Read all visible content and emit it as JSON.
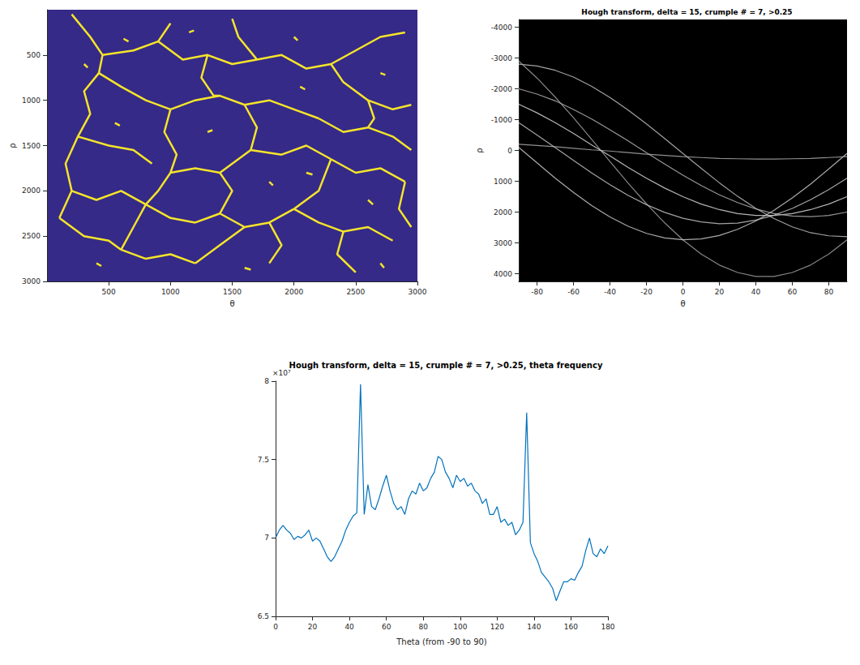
{
  "chart_data": [
    {
      "type": "segments",
      "color": "#f5e42a",
      "x_label": "θ",
      "y_label": "ρ",
      "xlim": [
        0,
        3000
      ],
      "ylim": [
        3000,
        0
      ],
      "xticks": [
        500,
        1000,
        1500,
        2000,
        2500,
        3000
      ],
      "yticks": [
        500,
        1000,
        1500,
        2000,
        2500,
        3000
      ],
      "segments": [
        [
          [
            200,
            50
          ],
          [
            350,
            300
          ],
          [
            450,
            500
          ],
          [
            420,
            700
          ]
        ],
        [
          [
            450,
            500
          ],
          [
            700,
            450
          ],
          [
            900,
            350
          ],
          [
            1000,
            150
          ]
        ],
        [
          [
            900,
            350
          ],
          [
            1100,
            550
          ],
          [
            1300,
            500
          ],
          [
            1500,
            600
          ],
          [
            1700,
            550
          ]
        ],
        [
          [
            1700,
            550
          ],
          [
            1900,
            500
          ],
          [
            2100,
            650
          ],
          [
            2300,
            600
          ]
        ],
        [
          [
            1500,
            100
          ],
          [
            1550,
            300
          ],
          [
            1700,
            550
          ]
        ],
        [
          [
            2300,
            600
          ],
          [
            2500,
            450
          ],
          [
            2700,
            300
          ],
          [
            2900,
            250
          ]
        ],
        [
          [
            2300,
            600
          ],
          [
            2400,
            800
          ],
          [
            2600,
            1000
          ],
          [
            2800,
            1100
          ],
          [
            2950,
            1050
          ]
        ],
        [
          [
            420,
            700
          ],
          [
            300,
            900
          ],
          [
            350,
            1150
          ],
          [
            250,
            1400
          ]
        ],
        [
          [
            420,
            700
          ],
          [
            600,
            850
          ],
          [
            800,
            1000
          ],
          [
            1000,
            1100
          ]
        ],
        [
          [
            1000,
            1100
          ],
          [
            1200,
            1000
          ],
          [
            1400,
            950
          ],
          [
            1600,
            1050
          ]
        ],
        [
          [
            1000,
            1100
          ],
          [
            950,
            1350
          ],
          [
            1050,
            1600
          ],
          [
            1000,
            1800
          ]
        ],
        [
          [
            1600,
            1050
          ],
          [
            1800,
            1000
          ],
          [
            2000,
            1100
          ],
          [
            2200,
            1200
          ]
        ],
        [
          [
            1600,
            1050
          ],
          [
            1700,
            1300
          ],
          [
            1650,
            1550
          ]
        ],
        [
          [
            2200,
            1200
          ],
          [
            2400,
            1350
          ],
          [
            2600,
            1300
          ],
          [
            2800,
            1400
          ],
          [
            2950,
            1550
          ]
        ],
        [
          [
            250,
            1400
          ],
          [
            150,
            1700
          ],
          [
            200,
            2000
          ],
          [
            100,
            2300
          ]
        ],
        [
          [
            250,
            1400
          ],
          [
            500,
            1500
          ],
          [
            700,
            1550
          ],
          [
            850,
            1700
          ]
        ],
        [
          [
            1000,
            1800
          ],
          [
            1200,
            1750
          ],
          [
            1400,
            1800
          ],
          [
            1650,
            1550
          ]
        ],
        [
          [
            1650,
            1550
          ],
          [
            1900,
            1600
          ],
          [
            2100,
            1500
          ],
          [
            2300,
            1650
          ]
        ],
        [
          [
            2300,
            1650
          ],
          [
            2500,
            1800
          ],
          [
            2700,
            1750
          ],
          [
            2900,
            1900
          ]
        ],
        [
          [
            200,
            2000
          ],
          [
            400,
            2100
          ],
          [
            600,
            2000
          ],
          [
            800,
            2150
          ]
        ],
        [
          [
            1000,
            1800
          ],
          [
            900,
            2000
          ],
          [
            800,
            2150
          ],
          [
            700,
            2400
          ],
          [
            600,
            2650
          ]
        ],
        [
          [
            800,
            2150
          ],
          [
            1000,
            2300
          ],
          [
            1200,
            2350
          ],
          [
            1400,
            2250
          ]
        ],
        [
          [
            1400,
            2250
          ],
          [
            1500,
            2000
          ],
          [
            1400,
            1800
          ]
        ],
        [
          [
            1400,
            2250
          ],
          [
            1600,
            2400
          ],
          [
            1800,
            2350
          ],
          [
            2000,
            2200
          ]
        ],
        [
          [
            2000,
            2200
          ],
          [
            2200,
            2000
          ],
          [
            2300,
            1650
          ]
        ],
        [
          [
            2000,
            2200
          ],
          [
            2200,
            2350
          ],
          [
            2400,
            2450
          ],
          [
            2600,
            2400
          ],
          [
            2800,
            2550
          ]
        ],
        [
          [
            600,
            2650
          ],
          [
            800,
            2750
          ],
          [
            1000,
            2700
          ],
          [
            1200,
            2800
          ]
        ],
        [
          [
            1200,
            2800
          ],
          [
            1400,
            2600
          ],
          [
            1600,
            2400
          ]
        ],
        [
          [
            1800,
            2350
          ],
          [
            1900,
            2600
          ],
          [
            1800,
            2800
          ]
        ],
        [
          [
            2400,
            2450
          ],
          [
            2350,
            2700
          ],
          [
            2500,
            2900
          ]
        ],
        [
          [
            100,
            2300
          ],
          [
            300,
            2500
          ],
          [
            500,
            2550
          ],
          [
            600,
            2650
          ]
        ],
        [
          [
            2900,
            1900
          ],
          [
            2850,
            2200
          ],
          [
            2950,
            2400
          ]
        ],
        [
          [
            1300,
            500
          ],
          [
            1250,
            750
          ],
          [
            1350,
            950
          ],
          [
            1400,
            950
          ]
        ],
        [
          [
            2600,
            1000
          ],
          [
            2650,
            1200
          ],
          [
            2600,
            1300
          ]
        ],
        [
          [
            620,
            320
          ],
          [
            660,
            350
          ]
        ],
        [
          [
            1150,
            250
          ],
          [
            1190,
            230
          ]
        ],
        [
          [
            2000,
            300
          ],
          [
            2030,
            340
          ]
        ],
        [
          [
            2700,
            700
          ],
          [
            2740,
            720
          ]
        ],
        [
          [
            550,
            1250
          ],
          [
            590,
            1280
          ]
        ],
        [
          [
            1300,
            1350
          ],
          [
            1340,
            1330
          ]
        ],
        [
          [
            2100,
            1800
          ],
          [
            2150,
            1820
          ]
        ],
        [
          [
            2600,
            2100
          ],
          [
            2640,
            2150
          ]
        ],
        [
          [
            400,
            2800
          ],
          [
            440,
            2830
          ]
        ],
        [
          [
            1600,
            2850
          ],
          [
            1650,
            2870
          ]
        ],
        [
          [
            2700,
            2800
          ],
          [
            2730,
            2850
          ]
        ],
        [
          [
            2050,
            850
          ],
          [
            2090,
            880
          ]
        ],
        [
          [
            1800,
            1900
          ],
          [
            1830,
            1940
          ]
        ],
        [
          [
            300,
            600
          ],
          [
            330,
            640
          ]
        ]
      ]
    },
    {
      "type": "line",
      "title": "Hough transform, delta = 15, crumple # = 7, >0.25",
      "x_label": "θ",
      "y_label": "ρ",
      "xlim": [
        -90,
        90
      ],
      "ylim": [
        4250,
        -4250
      ],
      "xticks": [
        -80,
        -60,
        -40,
        -20,
        0,
        20,
        40,
        60,
        80
      ],
      "yticks": [
        -4000,
        -3000,
        -2000,
        -1000,
        0,
        1000,
        2000,
        3000,
        4000
      ],
      "x": [
        -90,
        -80,
        -70,
        -60,
        -50,
        -40,
        -30,
        -20,
        -10,
        0,
        10,
        20,
        30,
        40,
        50,
        60,
        70,
        80,
        90
      ],
      "series": [
        {
          "color": "#bdbdbd",
          "values": [
            -2800,
            -2740,
            -2600,
            -2380,
            -2080,
            -1720,
            -1310,
            -860,
            -390,
            100,
            580,
            1050,
            1490,
            1880,
            2210,
            2480,
            2670,
            2770,
            2800
          ]
        },
        {
          "color": "#9e9e9e",
          "values": [
            -2900,
            -2350,
            -1730,
            -1060,
            -360,
            360,
            1060,
            1730,
            2350,
            2900,
            3360,
            3720,
            3960,
            4090,
            4090,
            3960,
            3720,
            3360,
            2900
          ]
        },
        {
          "color": "#c8c8c8",
          "values": [
            -100,
            400,
            900,
            1360,
            1790,
            2160,
            2460,
            2690,
            2840,
            2900,
            2870,
            2760,
            2560,
            2290,
            1940,
            1540,
            1090,
            600,
            100
          ]
        },
        {
          "color": "#a8a8a8",
          "values": [
            -200,
            -160,
            -120,
            -70,
            -20,
            20,
            70,
            120,
            160,
            200,
            230,
            260,
            270,
            280,
            280,
            270,
            260,
            230,
            200
          ]
        },
        {
          "color": "#d4d4d4",
          "values": [
            -1500,
            -1220,
            -900,
            -550,
            -180,
            180,
            550,
            900,
            1220,
            1500,
            1740,
            1920,
            2050,
            2110,
            2110,
            2050,
            1920,
            1740,
            1500
          ]
        },
        {
          "color": "#b0b0b0",
          "values": [
            -2000,
            -1830,
            -1610,
            -1330,
            -1020,
            -670,
            -310,
            70,
            440,
            800,
            1140,
            1440,
            1690,
            1900,
            2050,
            2130,
            2150,
            2110,
            2000
          ]
        },
        {
          "color": "#c0c0c0",
          "values": [
            -900,
            -500,
            -90,
            320,
            730,
            1110,
            1460,
            1760,
            2010,
            2200,
            2320,
            2380,
            2360,
            2260,
            2100,
            1880,
            1600,
            1270,
            900
          ]
        }
      ]
    },
    {
      "type": "line",
      "title": "Hough transform, delta = 15, crumple # = 7, >0.25, theta frequency",
      "x_label": "Theta (from -90 to 90)",
      "annotations": [
        "×10⁷"
      ],
      "color": "#0072bd",
      "xlim": [
        0,
        180
      ],
      "ylim": [
        6.5,
        8
      ],
      "xticks": [
        0,
        20,
        40,
        60,
        80,
        100,
        120,
        140,
        160,
        180
      ],
      "yticks": [
        6.5,
        7,
        7.5,
        8
      ],
      "x": [
        0,
        2,
        4,
        6,
        8,
        10,
        12,
        14,
        16,
        18,
        20,
        22,
        24,
        26,
        28,
        30,
        32,
        34,
        36,
        38,
        40,
        42,
        44,
        46,
        48,
        50,
        52,
        54,
        56,
        58,
        60,
        62,
        64,
        66,
        68,
        70,
        72,
        74,
        76,
        78,
        80,
        82,
        84,
        86,
        88,
        90,
        92,
        94,
        96,
        98,
        100,
        102,
        104,
        106,
        108,
        110,
        112,
        114,
        116,
        118,
        120,
        122,
        124,
        126,
        128,
        130,
        132,
        134,
        136,
        138,
        140,
        142,
        144,
        146,
        148,
        150,
        152,
        154,
        156,
        158,
        160,
        162,
        164,
        166,
        168,
        170,
        172,
        174,
        176,
        178,
        180
      ],
      "values": [
        7.0,
        7.05,
        7.08,
        7.05,
        7.03,
        6.99,
        7.01,
        7.0,
        7.02,
        7.05,
        6.98,
        7.0,
        6.98,
        6.93,
        6.88,
        6.85,
        6.88,
        6.93,
        6.98,
        7.05,
        7.1,
        7.14,
        7.16,
        7.98,
        7.15,
        7.34,
        7.2,
        7.18,
        7.25,
        7.33,
        7.4,
        7.3,
        7.22,
        7.18,
        7.2,
        7.15,
        7.25,
        7.3,
        7.28,
        7.35,
        7.3,
        7.32,
        7.38,
        7.42,
        7.52,
        7.5,
        7.42,
        7.38,
        7.32,
        7.4,
        7.36,
        7.38,
        7.33,
        7.35,
        7.3,
        7.28,
        7.22,
        7.25,
        7.15,
        7.15,
        7.2,
        7.1,
        7.12,
        7.08,
        7.1,
        7.02,
        7.05,
        7.1,
        7.8,
        6.97,
        6.9,
        6.85,
        6.78,
        6.75,
        6.72,
        6.68,
        6.6,
        6.66,
        6.72,
        6.72,
        6.74,
        6.73,
        6.78,
        6.82,
        6.92,
        7.0,
        6.9,
        6.88,
        6.93,
        6.9,
        6.95
      ]
    }
  ]
}
